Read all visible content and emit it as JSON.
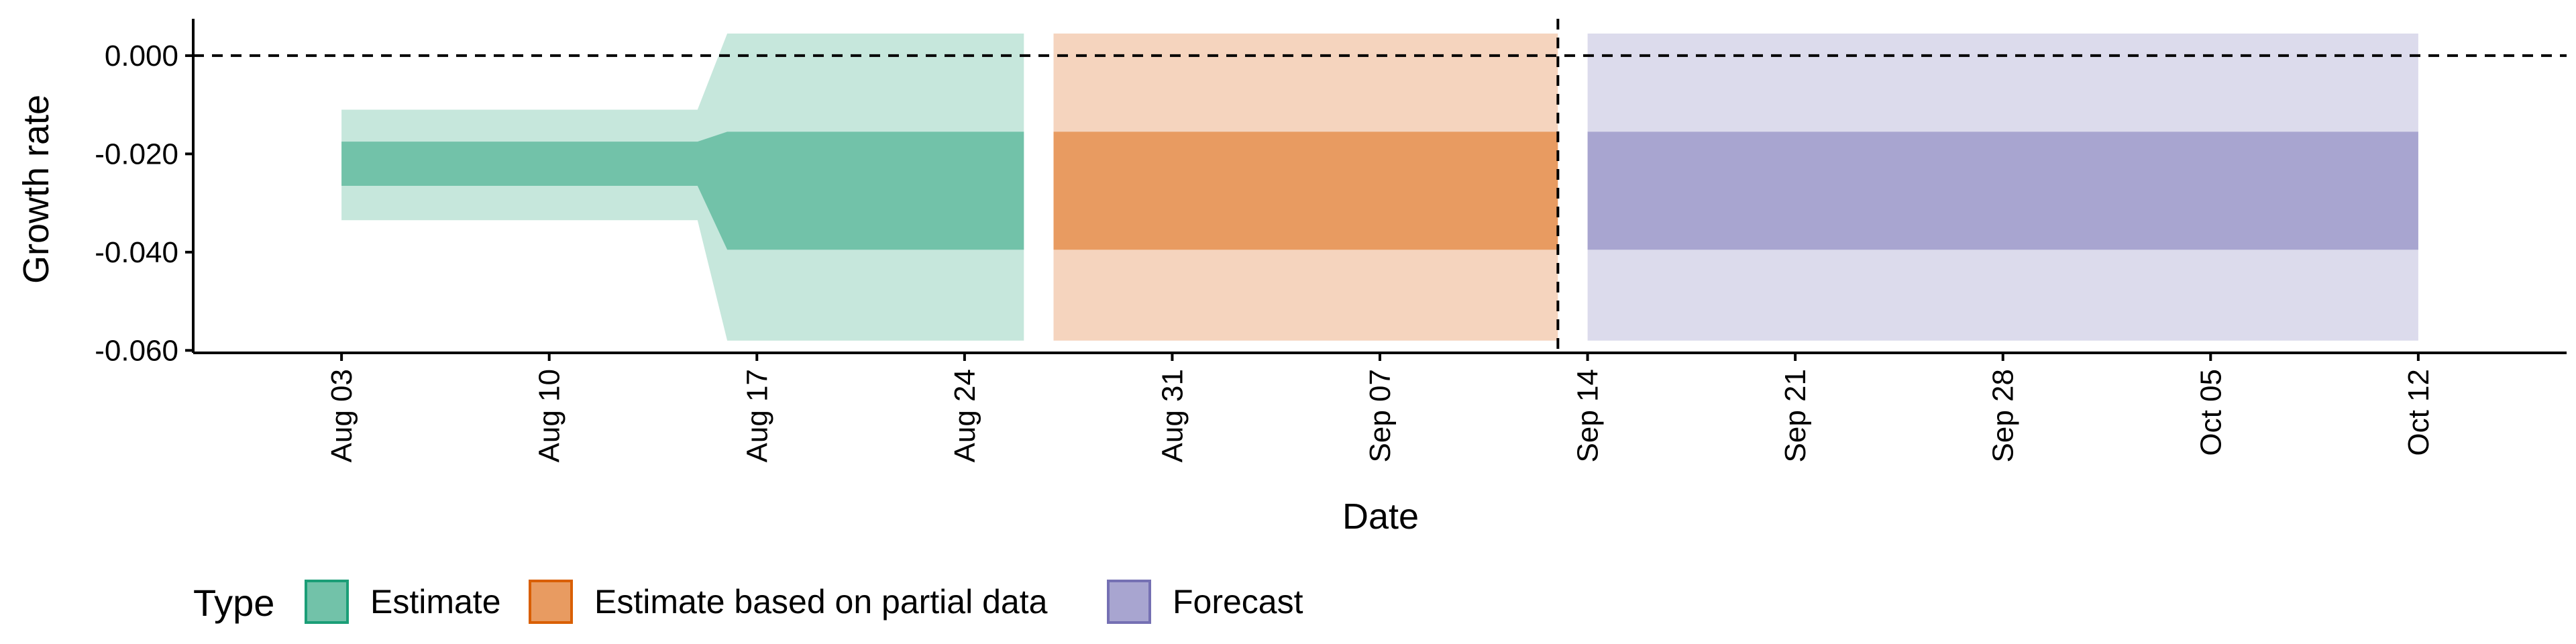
{
  "chart_data": {
    "type": "area",
    "title": "",
    "xlabel": "Date",
    "ylabel": "Growth rate",
    "x_range": [
      "2020-07-29",
      "2020-10-17"
    ],
    "ylim": [
      -0.0605,
      0.0075
    ],
    "y_ticks": [
      {
        "value": 0.0,
        "label": "0.000"
      },
      {
        "value": -0.02,
        "label": "-0.020"
      },
      {
        "value": -0.04,
        "label": "-0.040"
      },
      {
        "value": -0.06,
        "label": "-0.060"
      }
    ],
    "x_ticks": [
      {
        "date": "2020-08-03",
        "label": "Aug 03"
      },
      {
        "date": "2020-08-10",
        "label": "Aug 10"
      },
      {
        "date": "2020-08-17",
        "label": "Aug 17"
      },
      {
        "date": "2020-08-24",
        "label": "Aug 24"
      },
      {
        "date": "2020-08-31",
        "label": "Aug 31"
      },
      {
        "date": "2020-09-07",
        "label": "Sep 07"
      },
      {
        "date": "2020-09-14",
        "label": "Sep 14"
      },
      {
        "date": "2020-09-21",
        "label": "Sep 21"
      },
      {
        "date": "2020-09-28",
        "label": "Sep 28"
      },
      {
        "date": "2020-10-05",
        "label": "Oct 05"
      },
      {
        "date": "2020-10-12",
        "label": "Oct 12"
      }
    ],
    "reference_lines": {
      "horizontal_y": 0.0,
      "vertical_date": "2020-09-13"
    },
    "grid": false,
    "legend": {
      "title": "Type",
      "position": "bottom-left",
      "entries": [
        {
          "label": "Estimate",
          "fill": "#72C2A9",
          "border": "#1B9E77"
        },
        {
          "label": "Estimate based on partial data",
          "fill": "#E89B61",
          "border": "#D95F02"
        },
        {
          "label": "Forecast",
          "fill": "#A8A5D0",
          "border": "#7570B3"
        }
      ]
    },
    "series": [
      {
        "type": "Estimate",
        "colors": {
          "outer": "#C6E7DC",
          "inner": "#72C2A9"
        },
        "points": [
          {
            "date": "2020-08-03",
            "outer_low": -0.0335,
            "outer_high": -0.011,
            "inner_low": -0.0265,
            "inner_high": -0.0175
          },
          {
            "date": "2020-08-15",
            "outer_low": -0.0335,
            "outer_high": -0.011,
            "inner_low": -0.0265,
            "inner_high": -0.0175
          },
          {
            "date": "2020-08-16",
            "outer_low": -0.058,
            "outer_high": 0.0045,
            "inner_low": -0.0395,
            "inner_high": -0.0155
          },
          {
            "date": "2020-08-26",
            "outer_low": -0.058,
            "outer_high": 0.0045,
            "inner_low": -0.0395,
            "inner_high": -0.0155
          }
        ]
      },
      {
        "type": "Estimate based on partial data",
        "colors": {
          "outer": "#F5D4BE",
          "inner": "#E89B61"
        },
        "points": [
          {
            "date": "2020-08-27",
            "outer_low": -0.058,
            "outer_high": 0.0045,
            "inner_low": -0.0395,
            "inner_high": -0.0155
          },
          {
            "date": "2020-09-13",
            "outer_low": -0.058,
            "outer_high": 0.0045,
            "inner_low": -0.0395,
            "inner_high": -0.0155
          }
        ]
      },
      {
        "type": "Forecast",
        "colors": {
          "outer": "#DCDBEC",
          "inner": "#A8A5D0"
        },
        "points": [
          {
            "date": "2020-09-14",
            "outer_low": -0.058,
            "outer_high": 0.0045,
            "inner_low": -0.0395,
            "inner_high": -0.0155
          },
          {
            "date": "2020-10-12",
            "outer_low": -0.058,
            "outer_high": 0.0045,
            "inner_low": -0.0395,
            "inner_high": -0.0155
          }
        ]
      }
    ]
  }
}
